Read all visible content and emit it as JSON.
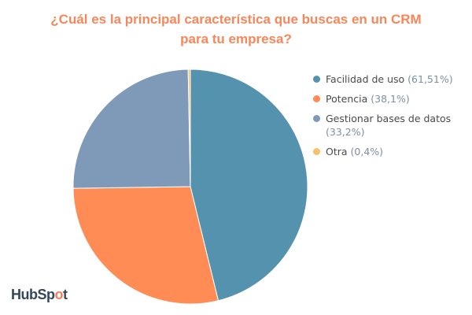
{
  "chart_data": {
    "type": "pie",
    "title": "¿Cuál es la principal característica que buscas en un CRM para tu empresa?",
    "title_lines": [
      "¿Cuál es la principal característica que buscas en un CRM",
      "para tu empresa?"
    ],
    "legend_position": "right",
    "slices": [
      {
        "label": "Facilidad de uso",
        "value": 61.51,
        "value_label": "(61,51%)",
        "color": "#5592ae"
      },
      {
        "label": "Potencia",
        "value": 38.1,
        "value_label": "(38,1%)",
        "color": "#ff8c55"
      },
      {
        "label": "Gestionar bases de datos",
        "value": 33.2,
        "value_label": "(33,2%)",
        "color": "#7e9ab8"
      },
      {
        "label": "Otra",
        "value": 0.4,
        "value_label": "(0,4%)",
        "color": "#f5c26b"
      }
    ]
  },
  "logo": {
    "text": "HubSpot",
    "accent": "#ff7a59"
  }
}
